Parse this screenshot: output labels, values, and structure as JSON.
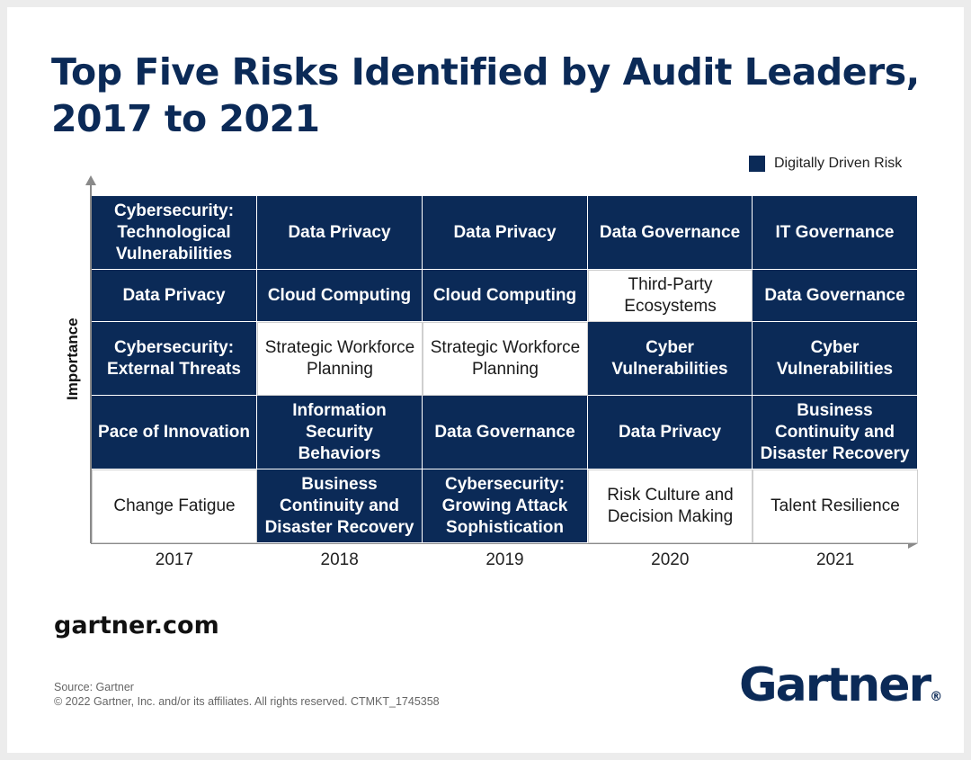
{
  "title": "Top Five Risks Identified by Audit Leaders, 2017 to 2021",
  "legend": {
    "label": "Digitally Driven Risk",
    "color": "#0b2a57"
  },
  "chart_data": {
    "type": "table",
    "title": "Top Five Risks Identified by Audit Leaders, 2017 to 2021",
    "ylabel": "Importance",
    "xlabel": "",
    "categories": [
      "2017",
      "2018",
      "2019",
      "2020",
      "2021"
    ],
    "columns": [
      {
        "year": "2017",
        "risks": [
          {
            "name": "Cybersecurity: Technological Vulnerabilities",
            "digital": true
          },
          {
            "name": "Data Privacy",
            "digital": true
          },
          {
            "name": "Cybersecurity: External Threats",
            "digital": true
          },
          {
            "name": "Pace of Innovation",
            "digital": true
          },
          {
            "name": "Change Fatigue",
            "digital": false
          }
        ]
      },
      {
        "year": "2018",
        "risks": [
          {
            "name": "Data Privacy",
            "digital": true
          },
          {
            "name": "Cloud Computing",
            "digital": true
          },
          {
            "name": "Strategic Workforce Planning",
            "digital": false
          },
          {
            "name": "Information Security Behaviors",
            "digital": true
          },
          {
            "name": "Business Continuity and Disaster Recovery",
            "digital": true
          }
        ]
      },
      {
        "year": "2019",
        "risks": [
          {
            "name": "Data Privacy",
            "digital": true
          },
          {
            "name": "Cloud Computing",
            "digital": true
          },
          {
            "name": "Strategic Workforce Planning",
            "digital": false
          },
          {
            "name": "Data Governance",
            "digital": true
          },
          {
            "name": "Cybersecurity: Growing Attack Sophistication",
            "digital": true
          }
        ]
      },
      {
        "year": "2020",
        "risks": [
          {
            "name": "Data Governance",
            "digital": true
          },
          {
            "name": "Third-Party Ecosystems",
            "digital": false
          },
          {
            "name": "Cyber Vulnerabilities",
            "digital": true
          },
          {
            "name": "Data Privacy",
            "digital": true
          },
          {
            "name": "Risk Culture and Decision Making",
            "digital": false
          }
        ]
      },
      {
        "year": "2021",
        "risks": [
          {
            "name": "IT Governance",
            "digital": true
          },
          {
            "name": "Data Governance",
            "digital": true
          },
          {
            "name": "Cyber Vulnerabilities",
            "digital": true
          },
          {
            "name": "Business Continuity and Disaster Recovery",
            "digital": true
          },
          {
            "name": "Talent Resilience",
            "digital": false
          }
        ]
      }
    ]
  },
  "footer": {
    "site": "gartner.com",
    "source": "Source: Gartner",
    "copyright": "© 2022 Gartner, Inc. and/or its affiliates. All rights reserved. CTMKT_1745358",
    "logo": "Gartner",
    "logo_mark": "®"
  }
}
